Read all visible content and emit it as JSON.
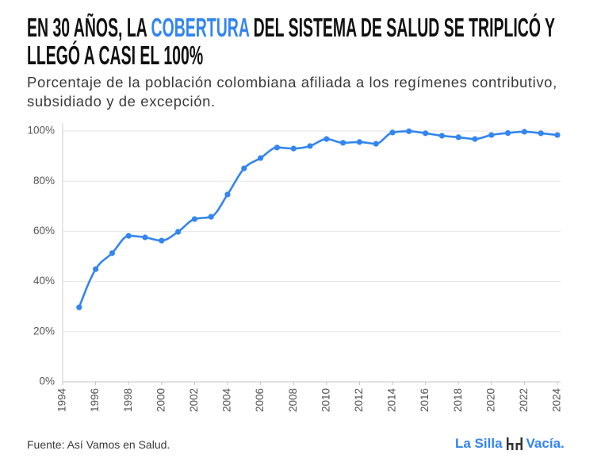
{
  "colors": {
    "accent": "#3385f0",
    "title": "#111111",
    "text": "#3a3a3a",
    "logo_icon": "#333333"
  },
  "chart_data": {
    "type": "line",
    "title": {
      "before": "EN 30 AÑOS, LA ",
      "highlight": "COBERTURA",
      "after": " DEL SISTEMA DE SALUD SE TRIPLICÓ Y LLEGÓ A CASI EL 100%"
    },
    "subtitle": "Porcentaje de la población colombiana afiliada a los regímenes contributivo, subsidiado y de excepción.",
    "x": [
      1995,
      1996,
      1997,
      1998,
      1999,
      2000,
      2001,
      2002,
      2003,
      2004,
      2005,
      2006,
      2007,
      2008,
      2009,
      2010,
      2011,
      2012,
      2013,
      2014,
      2015,
      2016,
      2017,
      2018,
      2019,
      2020,
      2021,
      2022,
      2023,
      2024
    ],
    "series": [
      {
        "values": [
          29.7,
          44.9,
          51.3,
          58.2,
          57.6,
          56.3,
          59.8,
          64.9,
          65.8,
          74.7,
          85.1,
          89.2,
          93.4,
          93.0,
          94.0,
          96.8,
          95.3,
          95.6,
          94.9,
          99.4,
          99.9,
          99.1,
          98.1,
          97.5,
          96.8,
          98.4,
          99.2,
          99.7,
          99.1,
          98.4
        ]
      }
    ],
    "xlim": [
      1994,
      2024
    ],
    "ylim": [
      0,
      100
    ],
    "x_ticks": [
      1994,
      1996,
      1998,
      2000,
      2002,
      2004,
      2006,
      2008,
      2010,
      2012,
      2014,
      2016,
      2018,
      2020,
      2022,
      2024
    ],
    "y_ticks": [
      0,
      20,
      40,
      60,
      80,
      100
    ],
    "y_tick_labels": [
      "0%",
      "20%",
      "40%",
      "60%",
      "80%",
      "100%"
    ],
    "grid": true
  },
  "footer": {
    "source": "Fuente: Así Vamos en Salud.",
    "logo": {
      "part1": "La Silla",
      "part2": "Vacía.",
      "icon": "chairs-icon"
    }
  }
}
